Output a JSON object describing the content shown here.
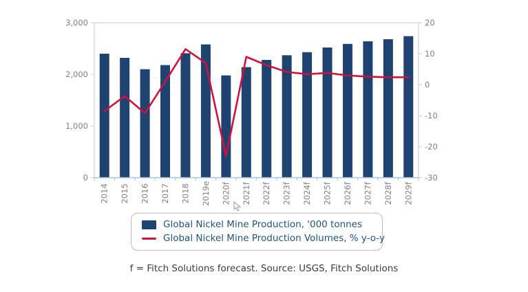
{
  "chart_data": {
    "type": "bar+line combo",
    "categories": [
      "2014",
      "2015",
      "2016",
      "2017",
      "2018",
      "2019e",
      "2020f",
      "2021f",
      "2022f",
      "2023f",
      "2024f",
      "2025f",
      "2026f",
      "2027f",
      "2028f",
      "2029f"
    ],
    "series": [
      {
        "name": "Global Nickel Mine Production, '000 tonnes",
        "type": "bar",
        "axis": "left",
        "color": "#1f4370",
        "values": [
          2400,
          2320,
          2100,
          2180,
          2410,
          2580,
          1980,
          2140,
          2280,
          2370,
          2430,
          2520,
          2590,
          2640,
          2680,
          2740
        ]
      },
      {
        "name": "Global Nickel Mine Production Volumes, % y-o-y",
        "type": "line",
        "axis": "right",
        "color": "#d0113c",
        "values": [
          -8.5,
          -3.7,
          -9.2,
          1.0,
          11.5,
          7.0,
          -23.0,
          9.0,
          6.3,
          4.1,
          3.4,
          3.8,
          3.0,
          2.6,
          2.4,
          2.4
        ]
      }
    ],
    "left_axis": {
      "min": 0,
      "max": 3000,
      "tick_values": [
        3000,
        2000,
        1000,
        0
      ],
      "tick_labels": [
        "3,000",
        "2,000",
        "1,000",
        "0"
      ]
    },
    "right_axis": {
      "min": -30,
      "max": 20,
      "tick_values": [
        20,
        10,
        0,
        -10,
        -20,
        -30
      ],
      "tick_labels": [
        "20",
        "10",
        "0",
        "-10",
        "-20",
        "-30"
      ]
    },
    "grid": "off",
    "legend_position": "bottom",
    "title": ""
  },
  "legend": {
    "items": [
      {
        "label": "Global Nickel Mine Production, '000 tonnes",
        "swatch": "bar",
        "color": "#1f4370"
      },
      {
        "label": "Global Nickel Mine Production Volumes, % y-o-y",
        "swatch": "line",
        "color": "#d0113c"
      }
    ]
  },
  "footer": {
    "text": "f = Fitch Solutions forecast. Source: USGS, Fitch Solutions"
  },
  "colors": {
    "bar": "#1f4370",
    "line": "#d0113c",
    "axis_text": "#7f7f7f",
    "plot_border": "#ccd3d9",
    "bottom_axis": "#a9c4dd",
    "legend_text": "#24517a"
  }
}
